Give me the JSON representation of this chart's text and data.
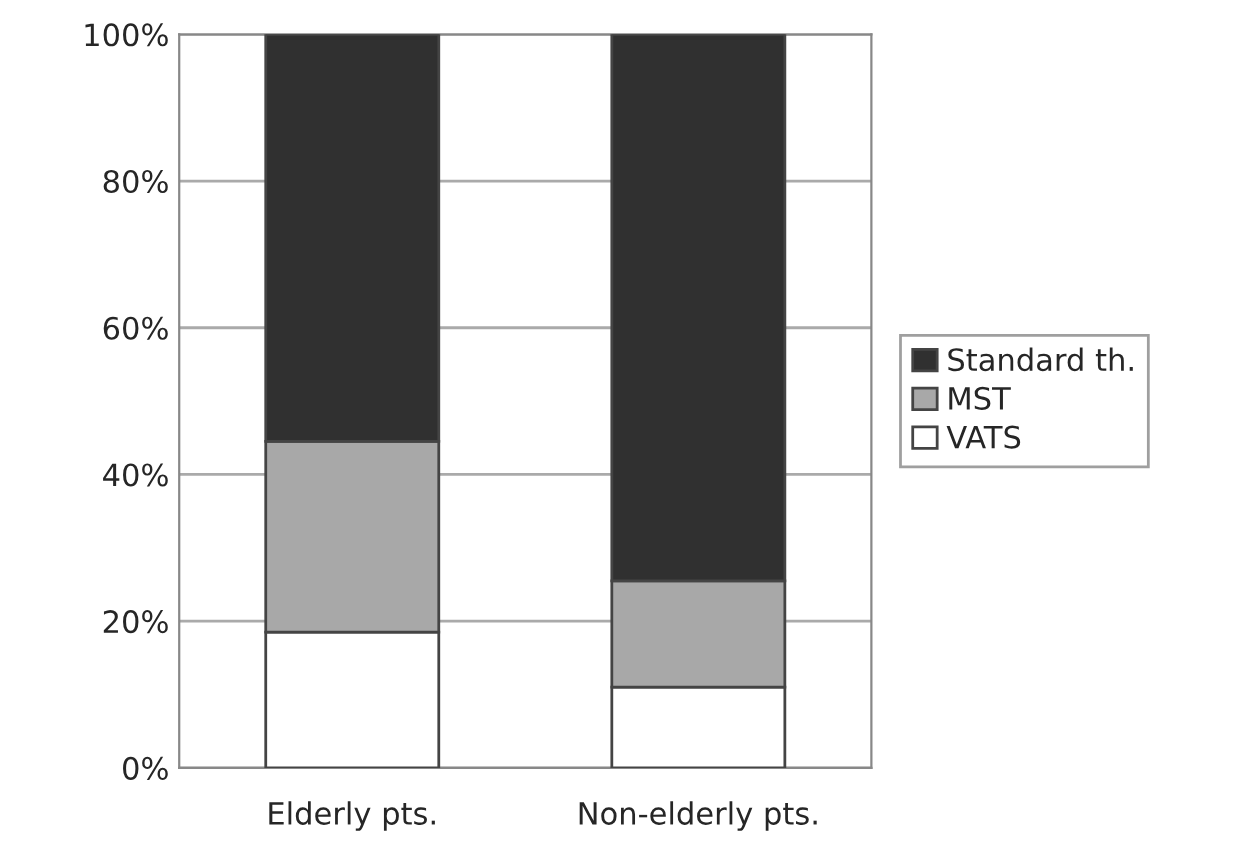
{
  "chart_data": {
    "type": "bar",
    "stacked": true,
    "categories": [
      "Elderly pts.",
      "Non-elderly pts."
    ],
    "series": [
      {
        "name": "VATS",
        "color": "#ffffff",
        "values": [
          18.5,
          11
        ]
      },
      {
        "name": "MST",
        "color": "#a8a8a8",
        "values": [
          26,
          14.5
        ]
      },
      {
        "name": "Standard th.",
        "color": "#303030",
        "values": [
          55.5,
          74.5
        ]
      }
    ],
    "ylim": [
      0,
      100
    ],
    "yticks": [
      {
        "value": 0,
        "label": "0%"
      },
      {
        "value": 20,
        "label": "20%"
      },
      {
        "value": 40,
        "label": "40%"
      },
      {
        "value": 60,
        "label": "60%"
      },
      {
        "value": 80,
        "label": "80%"
      },
      {
        "value": 100,
        "label": "100%"
      }
    ],
    "grid": "y",
    "legend": "right"
  }
}
